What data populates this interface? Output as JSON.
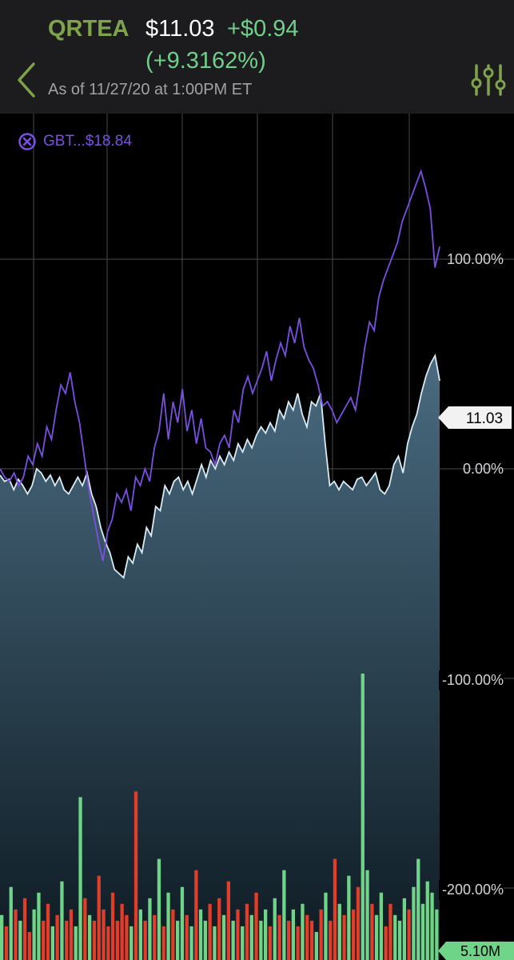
{
  "header": {
    "symbol": "QRTEA",
    "price": "$11.03",
    "change": "+$0.94",
    "change_pct": "(+9.3162%)",
    "as_of": "As of 11/27/20 at 1:00PM ET"
  },
  "icons": {
    "back": "chevron-left-icon",
    "settings": "sliders-icon",
    "remove": "close-circle-icon"
  },
  "colors": {
    "symbol": "#7fa34a",
    "positive": "#6fcf8b",
    "compare_line": "#7b4fe3",
    "price_line": "#d8ecf6",
    "volume_up": "#6fd488",
    "volume_down": "#e23d28"
  },
  "compare": {
    "label": "GBT...$18.84"
  },
  "axis": {
    "labels": [
      "100.00%",
      "0.00%",
      "-100.00%",
      "-200.00%"
    ],
    "current_price": "11.03",
    "volume_max": "5.10M"
  },
  "chart_data": {
    "type": "line",
    "ylim": [
      -220,
      150
    ],
    "y_unit": "% change",
    "series": [
      {
        "name": "QRTEA",
        "values": [
          -3,
          -6,
          -5,
          -10,
          -5,
          -8,
          -12,
          -8,
          0,
          -2,
          -6,
          -3,
          -8,
          -4,
          -10,
          -12,
          -8,
          -4,
          -8,
          -2,
          -12,
          -18,
          -28,
          -35,
          -40,
          -48,
          -50,
          -52,
          -42,
          -45,
          -36,
          -40,
          -28,
          -32,
          -18,
          -20,
          -8,
          -12,
          -6,
          -4,
          -10,
          -6,
          -12,
          -5,
          2,
          -4,
          4,
          0,
          6,
          2,
          8,
          4,
          12,
          8,
          14,
          10,
          16,
          20,
          17,
          22,
          18,
          28,
          24,
          32,
          28,
          36,
          26,
          20,
          32,
          30,
          36,
          12,
          -8,
          -6,
          -10,
          -6,
          -8,
          -10,
          -5,
          -4,
          -8,
          -5,
          -2,
          -10,
          -12,
          -8,
          2,
          6,
          -2,
          12,
          20,
          26,
          36,
          44,
          50,
          54,
          42
        ],
        "color": "#d8ecf6"
      },
      {
        "name": "GBT",
        "values": [
          0,
          -4,
          -6,
          -2,
          -8,
          -4,
          6,
          2,
          12,
          6,
          20,
          14,
          28,
          40,
          36,
          46,
          32,
          22,
          6,
          -10,
          -22,
          -34,
          -44,
          -30,
          -24,
          -12,
          -16,
          -10,
          -20,
          -4,
          -8,
          0,
          -6,
          10,
          18,
          36,
          14,
          32,
          22,
          38,
          18,
          28,
          12,
          24,
          10,
          8,
          2,
          12,
          16,
          10,
          28,
          22,
          38,
          44,
          36,
          42,
          48,
          56,
          42,
          52,
          60,
          54,
          68,
          60,
          72,
          58,
          52,
          48,
          40,
          30,
          32,
          28,
          22,
          26,
          30,
          34,
          28,
          42,
          58,
          70,
          66,
          82,
          90,
          96,
          102,
          108,
          118,
          124,
          130,
          136,
          142,
          134,
          124,
          96,
          106
        ],
        "color": "#7b4fe3"
      },
      {
        "name": "Volume",
        "values": [
          0.8,
          0.6,
          1.3,
          0.9,
          0.7,
          1.1,
          0.5,
          0.9,
          1.2,
          0.7,
          1.0,
          0.6,
          0.8,
          1.4,
          0.7,
          0.9,
          0.6,
          2.9,
          1.1,
          0.8,
          0.7,
          1.5,
          0.9,
          0.6,
          1.2,
          0.7,
          1.0,
          0.8,
          0.6,
          3.0,
          0.9,
          0.7,
          1.1,
          0.8,
          1.8,
          0.6,
          1.2,
          0.9,
          0.7,
          1.3,
          0.8,
          0.6,
          1.6,
          0.9,
          0.7,
          1.0,
          0.6,
          1.1,
          0.8,
          1.4,
          0.7,
          0.9,
          0.6,
          1.0,
          0.8,
          1.2,
          0.7,
          0.9,
          0.6,
          1.1,
          0.8,
          1.6,
          0.7,
          0.9,
          0.6,
          1.0,
          0.8,
          0.7,
          0.5,
          0.9,
          1.2,
          0.7,
          1.8,
          1.0,
          0.8,
          1.5,
          0.9,
          1.3,
          5.1,
          1.6,
          1.0,
          0.8,
          1.2,
          0.6,
          1.0,
          0.8,
          0.7,
          1.1,
          0.9,
          1.3,
          1.8,
          1.0,
          1.4,
          1.2,
          0.9
        ],
        "color": "#6fd488"
      }
    ]
  }
}
